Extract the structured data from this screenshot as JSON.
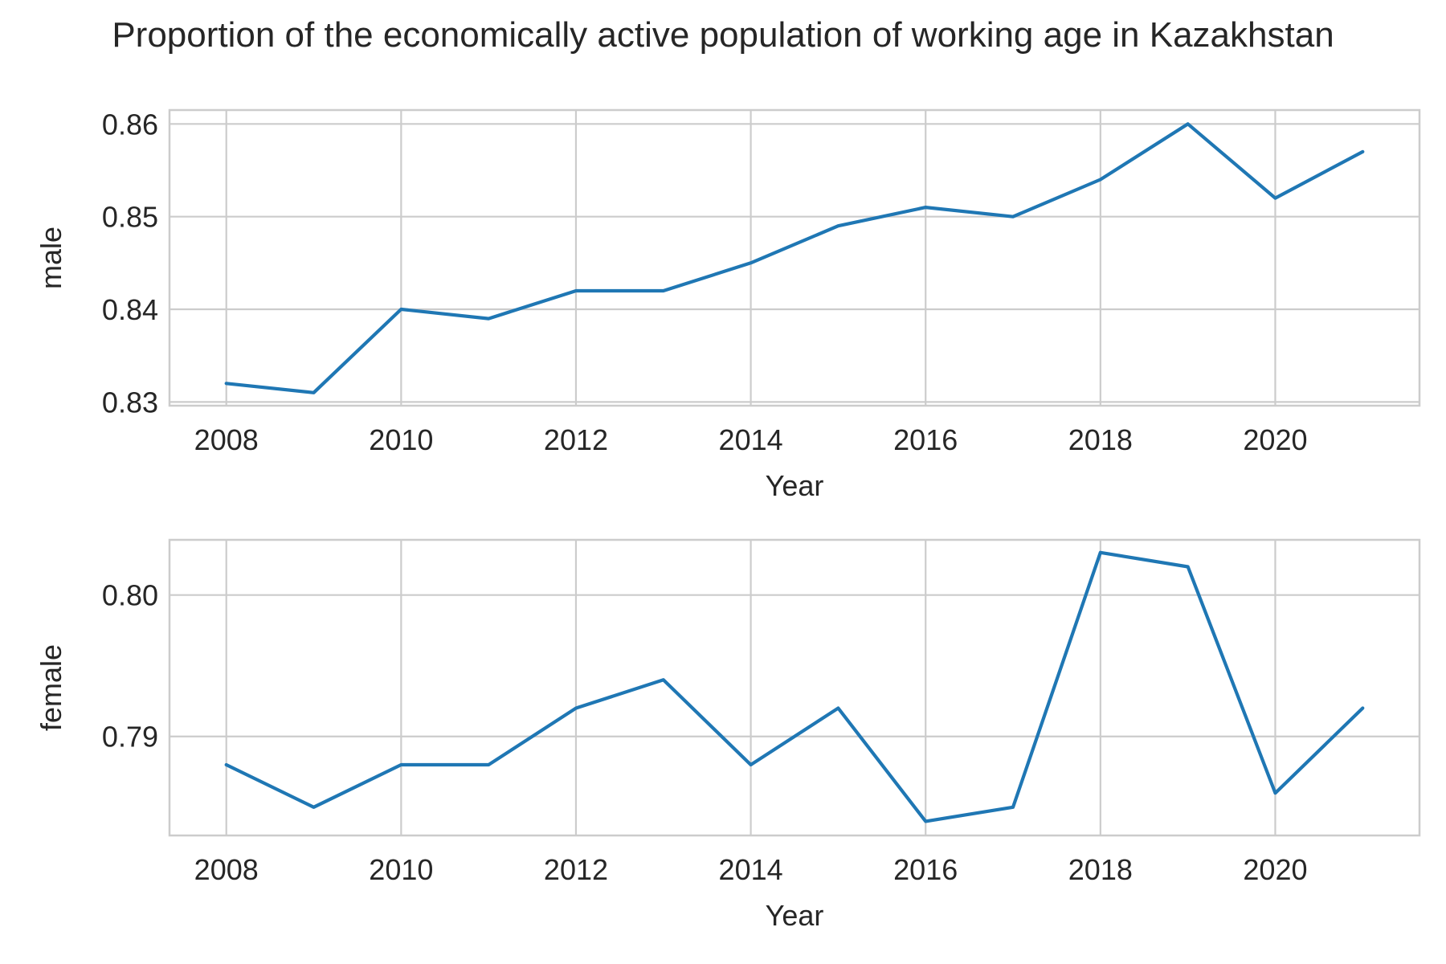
{
  "title": "Proportion of the economically active population of working age in Kazakhstan",
  "colors": {
    "series": "#1f77b4",
    "grid": "#cccccc",
    "text": "#262626"
  },
  "chart_data": [
    {
      "type": "line",
      "ylabel": "male",
      "xlabel": "Year",
      "x": [
        2008,
        2009,
        2010,
        2011,
        2012,
        2013,
        2014,
        2015,
        2016,
        2017,
        2018,
        2019,
        2020,
        2021
      ],
      "values": [
        0.832,
        0.831,
        0.84,
        0.839,
        0.842,
        0.842,
        0.845,
        0.849,
        0.851,
        0.85,
        0.854,
        0.86,
        0.852,
        0.857
      ],
      "xlim": [
        2007.35,
        2021.65
      ],
      "ylim": [
        0.8296,
        0.8615
      ],
      "xticks": [
        2008,
        2010,
        2012,
        2014,
        2016,
        2018,
        2020
      ],
      "xtick_labels": [
        "2008",
        "2010",
        "2012",
        "2014",
        "2016",
        "2018",
        "2020"
      ],
      "yticks": [
        0.83,
        0.84,
        0.85,
        0.86
      ],
      "ytick_labels": [
        "0.83",
        "0.84",
        "0.85",
        "0.86"
      ],
      "grid": true
    },
    {
      "type": "line",
      "ylabel": "female",
      "xlabel": "Year",
      "x": [
        2008,
        2009,
        2010,
        2011,
        2012,
        2013,
        2014,
        2015,
        2016,
        2017,
        2018,
        2019,
        2020,
        2021
      ],
      "values": [
        0.788,
        0.785,
        0.788,
        0.788,
        0.792,
        0.794,
        0.788,
        0.792,
        0.784,
        0.785,
        0.803,
        0.802,
        0.786,
        0.792
      ],
      "xlim": [
        2007.35,
        2021.65
      ],
      "ylim": [
        0.783,
        0.8039
      ],
      "xticks": [
        2008,
        2010,
        2012,
        2014,
        2016,
        2018,
        2020
      ],
      "xtick_labels": [
        "2008",
        "2010",
        "2012",
        "2014",
        "2016",
        "2018",
        "2020"
      ],
      "yticks": [
        0.79,
        0.8
      ],
      "ytick_labels": [
        "0.79",
        "0.80"
      ],
      "grid": true
    }
  ]
}
